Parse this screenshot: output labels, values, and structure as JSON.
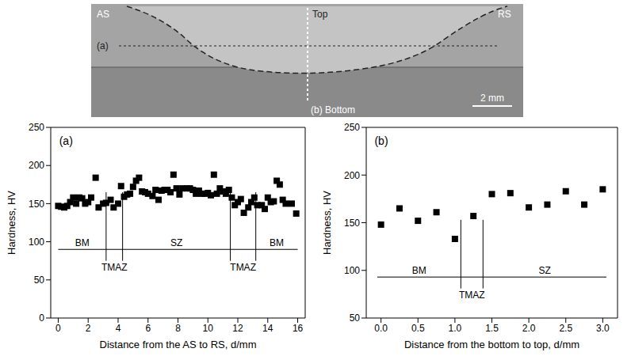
{
  "micrograph": {
    "as": "AS",
    "rs": "RS",
    "top": "Top",
    "line_a": "(a)",
    "line_b": "(b) Bottom",
    "scale": "2 mm"
  },
  "chart_data": [
    {
      "type": "scatter",
      "title": "(a)",
      "x_label": "Distance from the AS to RS, d/mm",
      "y_label": "Hardness, HV",
      "xlim": [
        -0.5,
        16.5
      ],
      "xticks": [
        0,
        2,
        4,
        6,
        8,
        10,
        12,
        14,
        16
      ],
      "ylim": [
        0,
        250
      ],
      "yticks": [
        0,
        50,
        100,
        150,
        200,
        250
      ],
      "color": "#000000",
      "marker": "square",
      "x": [
        0.0,
        0.2,
        0.4,
        0.6,
        0.8,
        1.0,
        1.2,
        1.4,
        1.6,
        1.8,
        2.0,
        2.2,
        2.5,
        2.7,
        3.0,
        3.2,
        3.5,
        3.7,
        4.0,
        4.2,
        4.4,
        4.6,
        4.8,
        5.0,
        5.2,
        5.4,
        5.6,
        5.8,
        6.0,
        6.3,
        6.5,
        6.7,
        6.9,
        7.1,
        7.3,
        7.5,
        7.7,
        7.9,
        8.1,
        8.3,
        8.6,
        8.8,
        9.0,
        9.2,
        9.4,
        9.6,
        9.8,
        10.0,
        10.2,
        10.4,
        10.6,
        10.8,
        11.0,
        11.2,
        11.4,
        11.6,
        11.8,
        12.0,
        12.2,
        12.4,
        12.7,
        12.9,
        13.1,
        13.3,
        13.6,
        13.8,
        14.0,
        14.2,
        14.4,
        14.6,
        14.8,
        15.0,
        15.2,
        15.6,
        15.9
      ],
      "values": [
        147,
        146,
        145,
        147,
        152,
        158,
        150,
        158,
        157,
        150,
        152,
        158,
        184,
        145,
        150,
        151,
        155,
        145,
        150,
        173,
        159,
        162,
        163,
        172,
        180,
        184,
        166,
        165,
        163,
        160,
        168,
        155,
        167,
        168,
        168,
        165,
        188,
        170,
        162,
        170,
        170,
        170,
        168,
        163,
        167,
        163,
        163,
        164,
        161,
        188,
        163,
        170,
        166,
        163,
        168,
        158,
        148,
        152,
        156,
        138,
        145,
        152,
        158,
        148,
        148,
        143,
        158,
        152,
        153,
        180,
        175,
        155,
        150,
        150,
        137
      ],
      "region_y": 90,
      "regions": [
        {
          "label": "BM",
          "from": 0,
          "to": 3.2
        },
        {
          "label": "TMAZ",
          "from": 3.2,
          "to": 4.3
        },
        {
          "label": "SZ",
          "from": 4.3,
          "to": 11.5
        },
        {
          "label": "TMAZ",
          "from": 11.5,
          "to": 13.2
        },
        {
          "label": "BM",
          "from": 13.2,
          "to": 16
        }
      ]
    },
    {
      "type": "scatter",
      "title": "(b)",
      "x_label": "Distance from the bottom to top, d/mm",
      "y_label": "Hardness, HV",
      "xlim": [
        -0.2,
        3.2
      ],
      "xticks": [
        {
          "value": 0,
          "label": "0.0"
        },
        0.5,
        {
          "value": 1,
          "label": "1.0"
        },
        1.5,
        {
          "value": 2,
          "label": "2.0"
        },
        2.5,
        {
          "value": 3,
          "label": "3.0"
        }
      ],
      "ylim": [
        50,
        250
      ],
      "yticks": [
        50,
        100,
        150,
        200,
        250
      ],
      "color": "#000000",
      "marker": "square",
      "x": [
        0.0,
        0.25,
        0.5,
        0.75,
        1.0,
        1.25,
        1.5,
        1.75,
        2.0,
        2.25,
        2.5,
        2.75,
        3.0
      ],
      "values": [
        148,
        165,
        152,
        161,
        133,
        157,
        180,
        181,
        166,
        169,
        183,
        169,
        185
      ],
      "region_y": 93,
      "regions": [
        {
          "label": "BM",
          "from": -0.05,
          "to": 1.08
        },
        {
          "label": "TMAZ",
          "from": 1.08,
          "to": 1.38
        },
        {
          "label": "SZ",
          "from": 1.38,
          "to": 3.05
        }
      ]
    }
  ]
}
